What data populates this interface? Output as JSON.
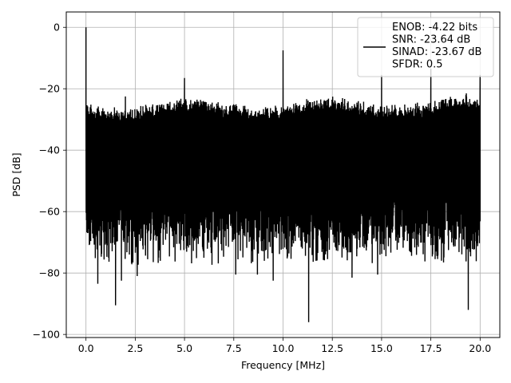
{
  "chart_data": {
    "type": "line",
    "xlabel": "Frequency [MHz]",
    "ylabel": "PSD [dB]",
    "xlim": [
      -1.0,
      21.0
    ],
    "ylim": [
      -101.0,
      5.0
    ],
    "xticks": [
      0.0,
      2.5,
      5.0,
      7.5,
      10.0,
      12.5,
      15.0,
      17.5,
      20.0
    ],
    "xtick_labels": [
      "0.0",
      "2.5",
      "5.0",
      "7.5",
      "10.0",
      "12.5",
      "15.0",
      "17.5",
      "20.0"
    ],
    "yticks": [
      0,
      -20,
      -40,
      -60,
      -80,
      -100
    ],
    "ytick_labels": [
      "0",
      "−20",
      "−40",
      "−60",
      "−80",
      "−100"
    ],
    "grid": true,
    "legend_position": "top-right",
    "line_color": "#000000",
    "series": [
      {
        "name": "ENOB: -4.22 bits\nSNR: -23.64 dB\nSINAD: -23.67 dB\nSFDR: 0.5",
        "noise_envelope": {
          "x": [
            0.0,
            20.0
          ],
          "upper_db": -26,
          "typical_low_db": -70
        },
        "spikes": [
          {
            "x": 0.0,
            "y": 0.0
          },
          {
            "x": 5.0,
            "y": -16.5
          },
          {
            "x": 10.0,
            "y": -7.5
          },
          {
            "x": 15.0,
            "y": -15.5
          },
          {
            "x": 17.5,
            "y": -13.5
          },
          {
            "x": 20.0,
            "y": -15.5
          },
          {
            "x": 2.0,
            "y": -22.5
          },
          {
            "x": 19.3,
            "y": -21.5
          }
        ],
        "dips": [
          {
            "x": 0.6,
            "y": -83.5
          },
          {
            "x": 1.5,
            "y": -90.5
          },
          {
            "x": 1.8,
            "y": -82.5
          },
          {
            "x": 2.6,
            "y": -81.0
          },
          {
            "x": 7.6,
            "y": -80.5
          },
          {
            "x": 8.7,
            "y": -80.5
          },
          {
            "x": 9.5,
            "y": -82.5
          },
          {
            "x": 11.3,
            "y": -96.0
          },
          {
            "x": 13.5,
            "y": -81.5
          },
          {
            "x": 14.8,
            "y": -80.5
          },
          {
            "x": 19.4,
            "y": -92.0
          }
        ]
      }
    ]
  }
}
